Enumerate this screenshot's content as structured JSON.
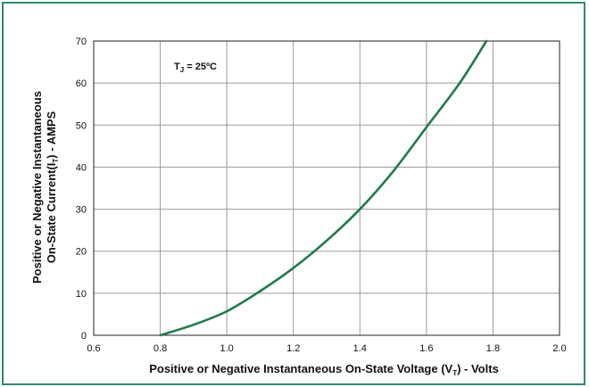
{
  "chart_data": {
    "type": "line",
    "x_ticks": [
      "0.6",
      "0.8",
      "1.0",
      "1.2",
      "1.4",
      "1.6",
      "1.8",
      "2.0"
    ],
    "y_ticks": [
      "0",
      "10",
      "20",
      "30",
      "40",
      "50",
      "60",
      "70"
    ],
    "xlim": [
      0.6,
      2.0
    ],
    "ylim": [
      0,
      70
    ],
    "grid": true,
    "xlabel": {
      "main": "Positive or Negative Instantaneous On-State Voltage (V",
      "sub": "T",
      "tail": ") - Volts"
    },
    "ylabel": {
      "line1": "Positive or Negative Instantaneous",
      "line2_main": "On-State Current(I",
      "line2_sub": "T",
      "line2_tail": ") - AMPS"
    },
    "annotation": {
      "main": "T",
      "sub": "J",
      "tail": " = 25ºC"
    },
    "series": [
      {
        "color": "#1f7a4a",
        "x": [
          0.8,
          0.9,
          1.0,
          1.1,
          1.2,
          1.3,
          1.4,
          1.5,
          1.6,
          1.7,
          1.78
        ],
        "y": [
          0,
          2.5,
          5.7,
          10.5,
          16,
          22.5,
          30,
          39,
          49.5,
          60,
          70
        ]
      }
    ]
  }
}
